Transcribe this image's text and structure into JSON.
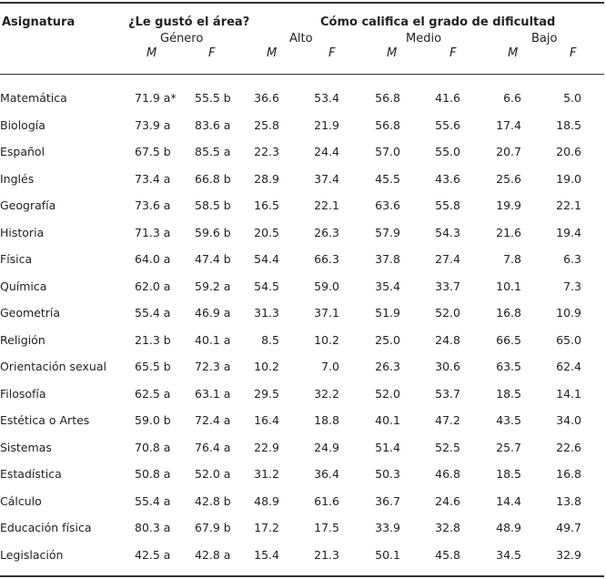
{
  "header": {
    "subject": "Asignatura",
    "liked": "¿Le gustó el área?",
    "difficulty": "Cómo califica el grado de dificultad",
    "gender": "Género",
    "high": "Alto",
    "medium": "Medio",
    "low": "Bajo",
    "m": "M",
    "f": "F"
  },
  "rows": [
    [
      "Matemática",
      "71.9 a*",
      "55.5 b",
      "36.6",
      "53.4",
      "56.8",
      "41.6",
      "6.6",
      "5.0"
    ],
    [
      "Biología",
      "73.9 a",
      "83.6 a",
      "25.8",
      "21.9",
      "56.8",
      "55.6",
      "17.4",
      "18.5"
    ],
    [
      "Español",
      "67.5 b",
      "85.5 a",
      "22.3",
      "24.4",
      "57.0",
      "55.0",
      "20.7",
      "20.6"
    ],
    [
      "Inglés",
      "73.4 a",
      "66.8 b",
      "28.9",
      "37.4",
      "45.5",
      "43.6",
      "25.6",
      "19.0"
    ],
    [
      "Geografía",
      "73.6 a",
      "58.5 b",
      "16.5",
      "22.1",
      "63.6",
      "55.8",
      "19.9",
      "22.1"
    ],
    [
      "Historia",
      "71.3 a",
      "59.6 b",
      "20.5",
      "26.3",
      "57.9",
      "54.3",
      "21.6",
      "19.4"
    ],
    [
      "Física",
      "64.0 a",
      "47.4 b",
      "54.4",
      "66.3",
      "37.8",
      "27.4",
      "7.8",
      "6.3"
    ],
    [
      "Química",
      "62.0 a",
      "59.2 a",
      "54.5",
      "59.0",
      "35.4",
      "33.7",
      "10.1",
      "7.3"
    ],
    [
      "Geometría",
      "55.4 a",
      "46.9 a",
      "31.3",
      "37.1",
      "51.9",
      "52.0",
      "16.8",
      "10.9"
    ],
    [
      "Religión",
      "21.3 b",
      "40.1 a",
      "8.5",
      "10.2",
      "25.0",
      "24.8",
      "66.5",
      "65.0"
    ],
    [
      "Orientación sexual",
      "65.5 b",
      "72.3 a",
      "10.2",
      "7.0",
      "26.3",
      "30.6",
      "63.5",
      "62.4"
    ],
    [
      "Filosofía",
      "62.5 a",
      "63.1 a",
      "29.5",
      "32.2",
      "52.0",
      "53.7",
      "18.5",
      "14.1"
    ],
    [
      "Estética o Artes",
      "59.0 b",
      "72.4 a",
      "16.4",
      "18.8",
      "40.1",
      "47.2",
      "43.5",
      "34.0"
    ],
    [
      "Sistemas",
      "70.8 a",
      "76.4 a",
      "22.9",
      "24.9",
      "51.4",
      "52.5",
      "25.7",
      "22.6"
    ],
    [
      "Estadística",
      "50.8 a",
      "52.0 a",
      "31.2",
      "36.4",
      "50.3",
      "46.8",
      "18.5",
      "16.8"
    ],
    [
      "Cálculo",
      "55.4 a",
      "42.8 b",
      "48.9",
      "61.6",
      "36.7",
      "24.6",
      "14.4",
      "13.8"
    ],
    [
      "Educación física",
      "80.3 a",
      "67.9 b",
      "17.2",
      "17.5",
      "33.9",
      "32.8",
      "48.9",
      "49.7"
    ],
    [
      "Legislación",
      "42.5 a",
      "42.8 a",
      "15.4",
      "21.3",
      "50.1",
      "45.8",
      "34.5",
      "32.9"
    ]
  ]
}
